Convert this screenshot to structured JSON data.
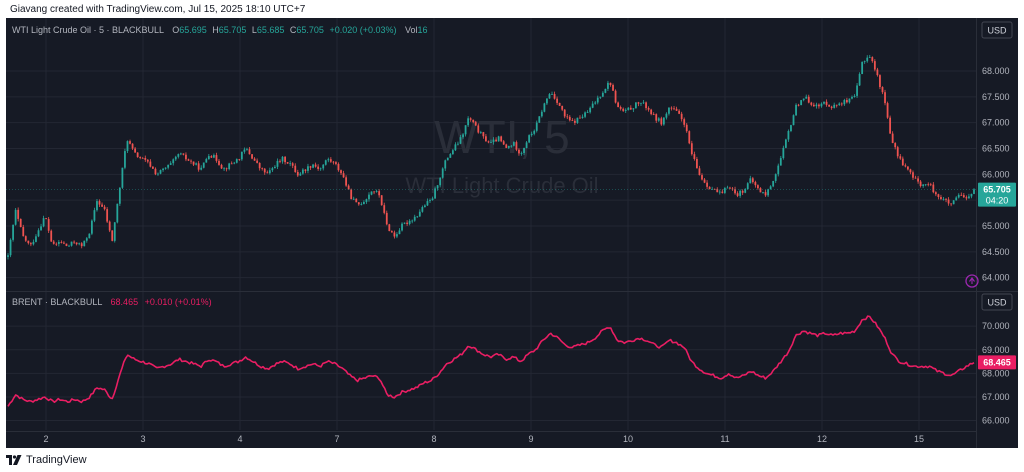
{
  "header": {
    "credit": "Giavang created with TradingView.com, Jul 15, 2025 18:10 UTC+7"
  },
  "footer": {
    "brand": "TradingView"
  },
  "colors": {
    "up": "#26a69a",
    "down": "#ef5350",
    "brent": "#e91e63",
    "background": "#161a25",
    "grid": "#232733",
    "text": "#b2b5be"
  },
  "chart_data": [
    {
      "type": "candlestick",
      "title": "WTI Light Crude Oil · 5 · BLACKBULL",
      "legend": {
        "symbol": "WTI Light Crude Oil · 5 · BLACKBULL",
        "o_label": "O",
        "o": "65.695",
        "h_label": "H",
        "h": "65.705",
        "l_label": "L",
        "l": "65.685",
        "c_label": "C",
        "c": "65.705",
        "change": "+0.020 (+0.03%)",
        "vol_label": "Vol",
        "vol": "16"
      },
      "watermark": {
        "symbol": "WTI, 5",
        "description": "WTI Light Crude Oil"
      },
      "currency": "USD",
      "y_ticks": [
        "68.000",
        "67.500",
        "67.000",
        "66.500",
        "66.000",
        "65.500",
        "65.000",
        "64.500",
        "64.000"
      ],
      "ylim": [
        63.8,
        68.6
      ],
      "last_price": "65.705",
      "countdown": "04:20",
      "x": [
        "2",
        "3",
        "4",
        "7",
        "8",
        "9",
        "10",
        "11",
        "12",
        "15"
      ],
      "path": [
        [
          0,
          64.4
        ],
        [
          1,
          65.3
        ],
        [
          2,
          64.8
        ],
        [
          3,
          64.6
        ],
        [
          4,
          64.9
        ],
        [
          5,
          65.2
        ],
        [
          6,
          64.6
        ],
        [
          7,
          64.7
        ],
        [
          8,
          64.6
        ],
        [
          9,
          64.7
        ],
        [
          10,
          64.6
        ],
        [
          11,
          64.9
        ],
        [
          12,
          65.5
        ],
        [
          13,
          65.3
        ],
        [
          14,
          64.7
        ],
        [
          15,
          65.7
        ],
        [
          16,
          66.7
        ],
        [
          17,
          66.4
        ],
        [
          18,
          66.3
        ],
        [
          19,
          66.2
        ],
        [
          20,
          66.0
        ],
        [
          21,
          66.1
        ],
        [
          22,
          66.2
        ],
        [
          23,
          66.4
        ],
        [
          24,
          66.3
        ],
        [
          25,
          66.2
        ],
        [
          26,
          66.1
        ],
        [
          27,
          66.4
        ],
        [
          28,
          66.3
        ],
        [
          29,
          66.1
        ],
        [
          30,
          66.2
        ],
        [
          31,
          66.3
        ],
        [
          32,
          66.5
        ],
        [
          33,
          66.3
        ],
        [
          34,
          66.1
        ],
        [
          35,
          66.0
        ],
        [
          36,
          66.2
        ],
        [
          37,
          66.3
        ],
        [
          38,
          66.2
        ],
        [
          39,
          66.0
        ],
        [
          40,
          66.1
        ],
        [
          41,
          66.2
        ],
        [
          42,
          66.1
        ],
        [
          43,
          66.3
        ],
        [
          44,
          66.2
        ],
        [
          45,
          66.0
        ],
        [
          46,
          65.6
        ],
        [
          47,
          65.4
        ],
        [
          48,
          65.5
        ],
        [
          49,
          65.7
        ],
        [
          50,
          65.6
        ],
        [
          51,
          65.0
        ],
        [
          52,
          64.8
        ],
        [
          53,
          65.0
        ],
        [
          54,
          65.1
        ],
        [
          55,
          65.2
        ],
        [
          56,
          65.4
        ],
        [
          57,
          65.5
        ],
        [
          58,
          65.9
        ],
        [
          59,
          66.3
        ],
        [
          60,
          66.5
        ],
        [
          61,
          66.7
        ],
        [
          62,
          67.1
        ],
        [
          63,
          66.9
        ],
        [
          64,
          66.7
        ],
        [
          65,
          66.6
        ],
        [
          66,
          66.7
        ],
        [
          67,
          66.5
        ],
        [
          68,
          66.6
        ],
        [
          69,
          66.4
        ],
        [
          70,
          66.7
        ],
        [
          71,
          66.9
        ],
        [
          72,
          67.3
        ],
        [
          73,
          67.6
        ],
        [
          74,
          67.4
        ],
        [
          75,
          67.1
        ],
        [
          76,
          67.0
        ],
        [
          77,
          67.1
        ],
        [
          78,
          67.2
        ],
        [
          79,
          67.4
        ],
        [
          80,
          67.6
        ],
        [
          81,
          67.8
        ],
        [
          82,
          67.3
        ],
        [
          83,
          67.2
        ],
        [
          84,
          67.3
        ],
        [
          85,
          67.4
        ],
        [
          86,
          67.3
        ],
        [
          87,
          67.1
        ],
        [
          88,
          67.0
        ],
        [
          89,
          67.3
        ],
        [
          90,
          67.2
        ],
        [
          91,
          67.0
        ],
        [
          92,
          66.4
        ],
        [
          93,
          66.0
        ],
        [
          94,
          65.8
        ],
        [
          95,
          65.7
        ],
        [
          96,
          65.6
        ],
        [
          97,
          65.8
        ],
        [
          98,
          65.6
        ],
        [
          99,
          65.7
        ],
        [
          100,
          65.9
        ],
        [
          101,
          65.7
        ],
        [
          102,
          65.6
        ],
        [
          103,
          65.9
        ],
        [
          104,
          66.3
        ],
        [
          105,
          66.8
        ],
        [
          106,
          67.3
        ],
        [
          107,
          67.5
        ],
        [
          108,
          67.4
        ],
        [
          109,
          67.3
        ],
        [
          110,
          67.4
        ],
        [
          111,
          67.3
        ],
        [
          112,
          67.4
        ],
        [
          113,
          67.4
        ],
        [
          114,
          67.5
        ],
        [
          115,
          68.2
        ],
        [
          116,
          68.3
        ],
        [
          117,
          67.9
        ],
        [
          118,
          67.4
        ],
        [
          119,
          66.6
        ],
        [
          120,
          66.3
        ],
        [
          121,
          66.1
        ],
        [
          122,
          65.9
        ],
        [
          123,
          65.8
        ],
        [
          124,
          65.8
        ],
        [
          125,
          65.6
        ],
        [
          126,
          65.5
        ],
        [
          127,
          65.4
        ],
        [
          128,
          65.6
        ],
        [
          129,
          65.5
        ],
        [
          130,
          65.705
        ]
      ]
    },
    {
      "type": "line",
      "title": "BRENT · BLACKBULL",
      "legend": {
        "symbol": "BRENT · BLACKBULL",
        "value": "68.465",
        "change": "+0.010 (+0.01%)"
      },
      "currency": "USD",
      "y_ticks": [
        "70.000",
        "69.000",
        "68.000",
        "67.000",
        "66.000"
      ],
      "ylim": [
        65.6,
        70.6
      ],
      "last_price": "68.465",
      "x": [
        "2",
        "3",
        "4",
        "7",
        "8",
        "9",
        "10",
        "11",
        "12",
        "15"
      ],
      "series": [
        {
          "values": [
            [
              0,
              66.6
            ],
            [
              1,
              67.1
            ],
            [
              2,
              66.9
            ],
            [
              3,
              66.8
            ],
            [
              4,
              66.9
            ],
            [
              5,
              67.0
            ],
            [
              6,
              66.8
            ],
            [
              7,
              66.9
            ],
            [
              8,
              66.8
            ],
            [
              9,
              66.9
            ],
            [
              10,
              66.8
            ],
            [
              11,
              67.0
            ],
            [
              12,
              67.4
            ],
            [
              13,
              67.3
            ],
            [
              14,
              66.9
            ],
            [
              15,
              67.9
            ],
            [
              16,
              68.8
            ],
            [
              17,
              68.6
            ],
            [
              18,
              68.5
            ],
            [
              19,
              68.4
            ],
            [
              20,
              68.2
            ],
            [
              21,
              68.3
            ],
            [
              22,
              68.4
            ],
            [
              23,
              68.6
            ],
            [
              24,
              68.5
            ],
            [
              25,
              68.4
            ],
            [
              26,
              68.3
            ],
            [
              27,
              68.6
            ],
            [
              28,
              68.5
            ],
            [
              29,
              68.3
            ],
            [
              30,
              68.4
            ],
            [
              31,
              68.5
            ],
            [
              32,
              68.7
            ],
            [
              33,
              68.5
            ],
            [
              34,
              68.3
            ],
            [
              35,
              68.2
            ],
            [
              36,
              68.4
            ],
            [
              37,
              68.5
            ],
            [
              38,
              68.4
            ],
            [
              39,
              68.2
            ],
            [
              40,
              68.3
            ],
            [
              41,
              68.4
            ],
            [
              42,
              68.3
            ],
            [
              43,
              68.5
            ],
            [
              44,
              68.4
            ],
            [
              45,
              68.2
            ],
            [
              46,
              67.9
            ],
            [
              47,
              67.7
            ],
            [
              48,
              67.8
            ],
            [
              49,
              67.9
            ],
            [
              50,
              67.8
            ],
            [
              51,
              67.1
            ],
            [
              52,
              67.0
            ],
            [
              53,
              67.2
            ],
            [
              54,
              67.3
            ],
            [
              55,
              67.4
            ],
            [
              56,
              67.6
            ],
            [
              57,
              67.7
            ],
            [
              58,
              68.0
            ],
            [
              59,
              68.4
            ],
            [
              60,
              68.6
            ],
            [
              61,
              68.8
            ],
            [
              62,
              69.2
            ],
            [
              63,
              69.0
            ],
            [
              64,
              68.8
            ],
            [
              65,
              68.7
            ],
            [
              66,
              68.8
            ],
            [
              67,
              68.6
            ],
            [
              68,
              68.7
            ],
            [
              69,
              68.5
            ],
            [
              70,
              68.8
            ],
            [
              71,
              69.0
            ],
            [
              72,
              69.4
            ],
            [
              73,
              69.7
            ],
            [
              74,
              69.5
            ],
            [
              75,
              69.2
            ],
            [
              76,
              69.1
            ],
            [
              77,
              69.2
            ],
            [
              78,
              69.3
            ],
            [
              79,
              69.5
            ],
            [
              80,
              69.8
            ],
            [
              81,
              70.0
            ],
            [
              82,
              69.4
            ],
            [
              83,
              69.3
            ],
            [
              84,
              69.4
            ],
            [
              85,
              69.5
            ],
            [
              86,
              69.4
            ],
            [
              87,
              69.2
            ],
            [
              88,
              69.1
            ],
            [
              89,
              69.4
            ],
            [
              90,
              69.3
            ],
            [
              91,
              69.1
            ],
            [
              92,
              68.5
            ],
            [
              93,
              68.2
            ],
            [
              94,
              68.0
            ],
            [
              95,
              67.9
            ],
            [
              96,
              67.8
            ],
            [
              97,
              68.0
            ],
            [
              98,
              67.8
            ],
            [
              99,
              67.9
            ],
            [
              100,
              68.1
            ],
            [
              101,
              67.9
            ],
            [
              102,
              67.8
            ],
            [
              103,
              68.1
            ],
            [
              104,
              68.5
            ],
            [
              105,
              68.9
            ],
            [
              106,
              69.6
            ],
            [
              107,
              69.8
            ],
            [
              108,
              69.7
            ],
            [
              109,
              69.6
            ],
            [
              110,
              69.7
            ],
            [
              111,
              69.6
            ],
            [
              112,
              69.7
            ],
            [
              113,
              69.7
            ],
            [
              114,
              69.8
            ],
            [
              115,
              70.3
            ],
            [
              116,
              70.4
            ],
            [
              117,
              70.0
            ],
            [
              118,
              69.5
            ],
            [
              119,
              68.8
            ],
            [
              120,
              68.5
            ],
            [
              121,
              68.4
            ],
            [
              122,
              68.3
            ],
            [
              123,
              68.3
            ],
            [
              124,
              68.3
            ],
            [
              125,
              68.1
            ],
            [
              126,
              68.0
            ],
            [
              127,
              67.9
            ],
            [
              128,
              68.1
            ],
            [
              129,
              68.3
            ],
            [
              130,
              68.465
            ]
          ]
        }
      ]
    }
  ]
}
